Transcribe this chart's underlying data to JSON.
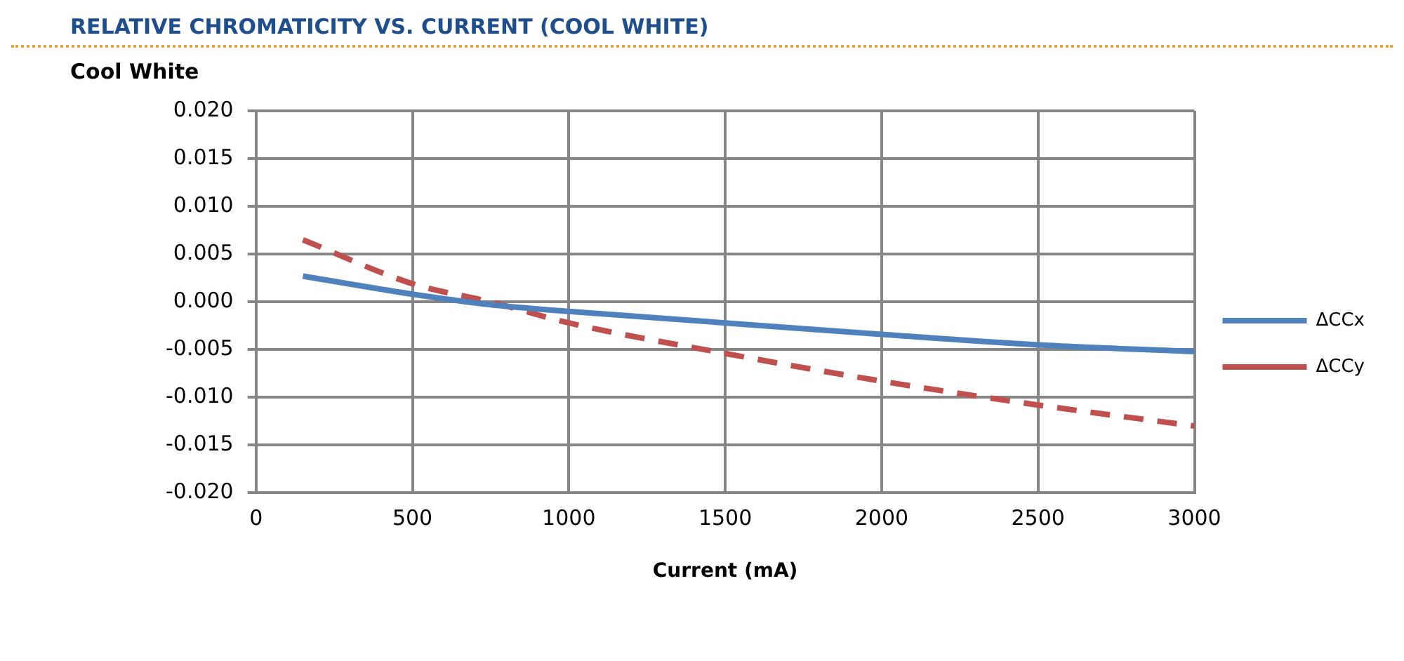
{
  "chart_data": {
    "type": "line",
    "title": "RELATIVE CHROMATICITY VS. CURRENT (COOL WHITE)",
    "subtitle": "Cool White",
    "xlabel": "Current (mA)",
    "x": [
      150,
      500,
      750,
      1000,
      1500,
      2000,
      2500,
      3000
    ],
    "series": [
      {
        "name": "ΔCCx",
        "color": "#4f81bd",
        "values": [
          0.0027,
          0.0008,
          -0.0003,
          -0.001,
          -0.0022,
          -0.0034,
          -0.0045,
          -0.0052
        ],
        "line_style": "solid"
      },
      {
        "name": "ΔCCy",
        "color": "#c0504d",
        "values": [
          0.0065,
          0.0019,
          0.0,
          -0.0022,
          -0.0054,
          -0.0083,
          -0.0108,
          -0.013
        ],
        "line_style": "dashed"
      }
    ],
    "xlim": [
      0,
      3000
    ],
    "xticks": [
      0,
      500,
      1000,
      1500,
      2000,
      2500,
      3000
    ],
    "ylim": [
      -0.02,
      0.02
    ],
    "yticks": [
      {
        "value": -0.02,
        "label": "-0.020"
      },
      {
        "value": -0.015,
        "label": "-0.015"
      },
      {
        "value": -0.01,
        "label": "-0.010"
      },
      {
        "value": -0.005,
        "label": "-0.005"
      },
      {
        "value": 0,
        "label": "0.000"
      },
      {
        "value": 0.005,
        "label": "0.005"
      },
      {
        "value": 0.01,
        "label": "0.010"
      },
      {
        "value": 0.015,
        "label": "0.015"
      },
      {
        "value": 0.02,
        "label": "0.020"
      }
    ],
    "grid": true,
    "legend": "right",
    "marker": "none"
  }
}
